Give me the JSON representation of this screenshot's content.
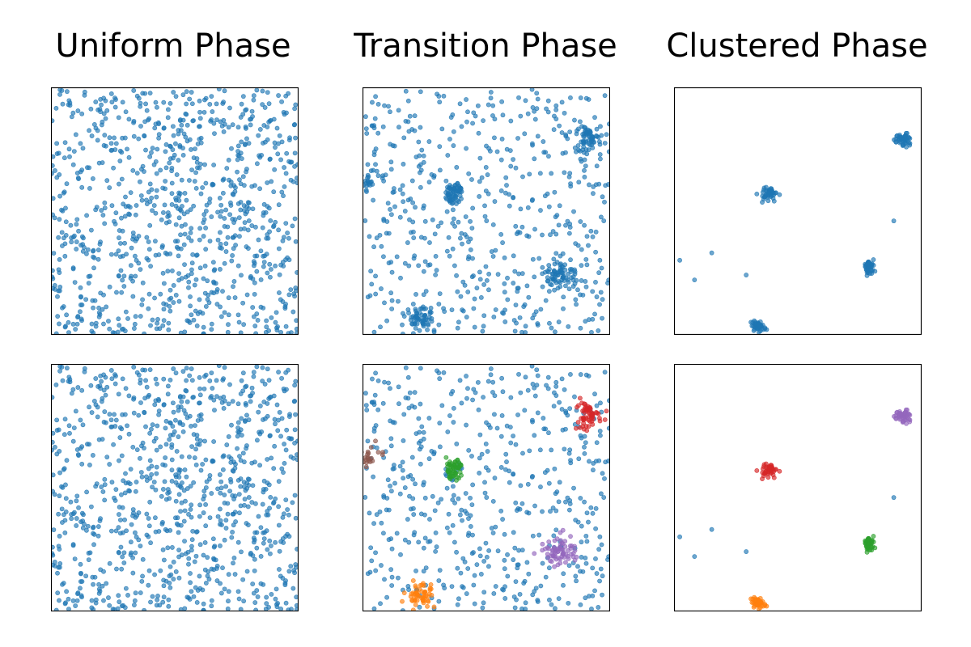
{
  "figure": {
    "column_titles": [
      "Uniform Phase",
      "Transition Phase",
      "Clustered Phase"
    ]
  },
  "colors": {
    "blue": "#1f77b4",
    "orange": "#ff7f0e",
    "green": "#2ca02c",
    "red": "#d62728",
    "purple": "#9467bd",
    "brown": "#8c564b"
  },
  "chart_data": [
    {
      "type": "scatter",
      "row": 1,
      "col": 1,
      "title": "Uniform Phase",
      "xlim": [
        0,
        1
      ],
      "ylim": [
        0,
        1
      ],
      "grid": false,
      "ticks": false,
      "background": {
        "count": 900,
        "distribution": "uniform",
        "color": "blue"
      },
      "clusters": []
    },
    {
      "type": "scatter",
      "row": 1,
      "col": 2,
      "title": "Transition Phase",
      "xlim": [
        0,
        1
      ],
      "ylim": [
        0,
        1
      ],
      "grid": false,
      "ticks": false,
      "background": {
        "count": 520,
        "distribution": "uniform",
        "color": "blue"
      },
      "clusters": [
        {
          "cx": 0.91,
          "cy": 0.79,
          "spread": 0.027,
          "count": 60,
          "color": "blue"
        },
        {
          "cx": 0.37,
          "cy": 0.57,
          "spread": 0.022,
          "count": 55,
          "color": "blue"
        },
        {
          "cx": 0.03,
          "cy": 0.63,
          "spread": 0.03,
          "count": 25,
          "color": "blue"
        },
        {
          "cx": 0.8,
          "cy": 0.24,
          "spread": 0.033,
          "count": 70,
          "color": "blue"
        },
        {
          "cx": 0.23,
          "cy": 0.06,
          "spread": 0.027,
          "count": 55,
          "color": "blue"
        }
      ]
    },
    {
      "type": "scatter",
      "row": 1,
      "col": 3,
      "title": "Clustered Phase",
      "xlim": [
        0,
        1
      ],
      "ylim": [
        0,
        1
      ],
      "grid": false,
      "ticks": false,
      "background": {
        "count": 0,
        "color": "blue"
      },
      "isolated_points": [
        {
          "x": 0.02,
          "y": 0.3
        },
        {
          "x": 0.08,
          "y": 0.22
        },
        {
          "x": 0.15,
          "y": 0.33
        },
        {
          "x": 0.29,
          "y": 0.24
        },
        {
          "x": 0.89,
          "y": 0.46
        }
      ],
      "clusters": [
        {
          "cx": 0.93,
          "cy": 0.79,
          "spread": 0.014,
          "count": 45,
          "color": "blue"
        },
        {
          "cx": 0.38,
          "cy": 0.57,
          "spread": 0.014,
          "count": 45,
          "color": "blue"
        },
        {
          "cx": 0.79,
          "cy": 0.27,
          "spread": 0.014,
          "count": 45,
          "color": "blue"
        },
        {
          "cx": 0.34,
          "cy": 0.03,
          "spread": 0.012,
          "count": 45,
          "color": "blue"
        }
      ]
    },
    {
      "type": "scatter",
      "row": 2,
      "col": 1,
      "title": "",
      "xlim": [
        0,
        1
      ],
      "ylim": [
        0,
        1
      ],
      "grid": false,
      "ticks": false,
      "background": {
        "count": 900,
        "distribution": "uniform",
        "color": "blue"
      },
      "clusters": []
    },
    {
      "type": "scatter",
      "row": 2,
      "col": 2,
      "title": "",
      "xlim": [
        0,
        1
      ],
      "ylim": [
        0,
        1
      ],
      "grid": false,
      "ticks": false,
      "background": {
        "count": 520,
        "distribution": "uniform",
        "color": "blue"
      },
      "clusters": [
        {
          "cx": 0.91,
          "cy": 0.79,
          "spread": 0.027,
          "count": 60,
          "color": "red"
        },
        {
          "cx": 0.37,
          "cy": 0.57,
          "spread": 0.022,
          "count": 55,
          "color": "green"
        },
        {
          "cx": 0.03,
          "cy": 0.63,
          "spread": 0.03,
          "count": 25,
          "color": "brown"
        },
        {
          "cx": 0.8,
          "cy": 0.24,
          "spread": 0.033,
          "count": 70,
          "color": "purple"
        },
        {
          "cx": 0.23,
          "cy": 0.06,
          "spread": 0.027,
          "count": 55,
          "color": "orange"
        }
      ]
    },
    {
      "type": "scatter",
      "row": 2,
      "col": 3,
      "title": "",
      "xlim": [
        0,
        1
      ],
      "ylim": [
        0,
        1
      ],
      "grid": false,
      "ticks": false,
      "background": {
        "count": 0,
        "color": "blue"
      },
      "isolated_points": [
        {
          "x": 0.02,
          "y": 0.3
        },
        {
          "x": 0.08,
          "y": 0.22
        },
        {
          "x": 0.15,
          "y": 0.33
        },
        {
          "x": 0.29,
          "y": 0.24
        },
        {
          "x": 0.89,
          "y": 0.46
        }
      ],
      "clusters": [
        {
          "cx": 0.93,
          "cy": 0.79,
          "spread": 0.014,
          "count": 45,
          "color": "purple"
        },
        {
          "cx": 0.38,
          "cy": 0.57,
          "spread": 0.014,
          "count": 45,
          "color": "red"
        },
        {
          "cx": 0.79,
          "cy": 0.27,
          "spread": 0.014,
          "count": 45,
          "color": "green"
        },
        {
          "cx": 0.34,
          "cy": 0.03,
          "spread": 0.012,
          "count": 45,
          "color": "orange"
        }
      ]
    }
  ]
}
